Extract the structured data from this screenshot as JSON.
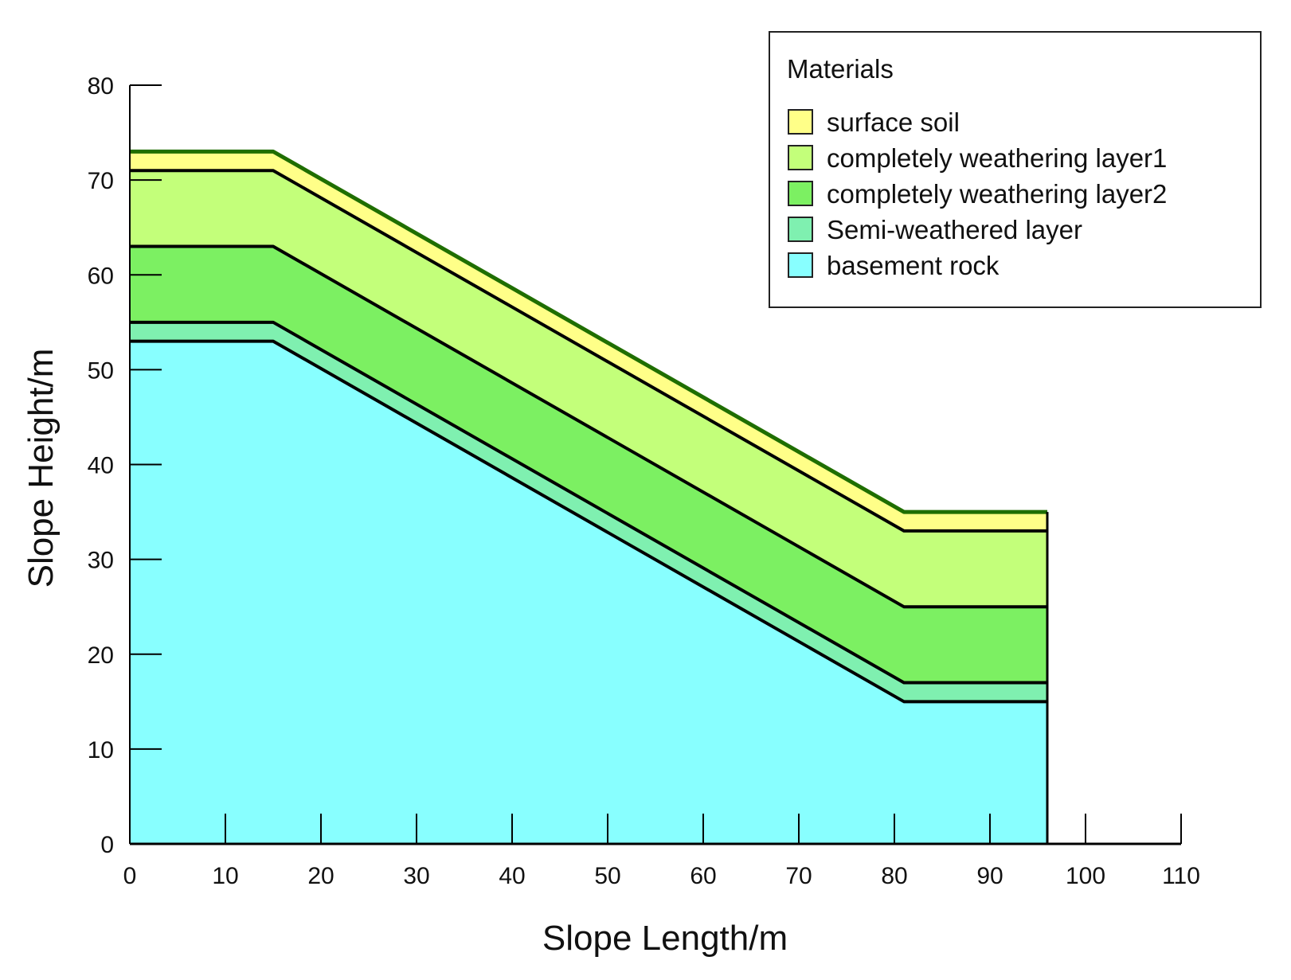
{
  "chart_data": {
    "type": "area",
    "title": "",
    "xlabel": "Slope Length/m",
    "ylabel": "Slope Height/m",
    "xlim": [
      0,
      110
    ],
    "ylim": [
      0,
      80
    ],
    "x_ticks": [
      0,
      10,
      20,
      30,
      40,
      50,
      60,
      70,
      80,
      90,
      100,
      110
    ],
    "y_ticks": [
      0,
      10,
      20,
      30,
      40,
      50,
      60,
      70,
      80
    ],
    "grid": false,
    "legend": {
      "title": "Materials",
      "position": "top-right"
    },
    "profile_x": [
      0,
      15,
      81,
      96
    ],
    "boundaries": [
      {
        "name": "ground surface",
        "y": [
          73,
          73,
          35,
          35
        ],
        "color": "#1f6e00"
      },
      {
        "name": "surface soil base",
        "y": [
          71,
          71,
          33,
          33
        ],
        "color": "#000000"
      },
      {
        "name": "completely weathering layer1 base",
        "y": [
          63,
          63,
          25,
          25
        ],
        "color": "#000000"
      },
      {
        "name": "completely weathering layer2 base",
        "y": [
          55,
          55,
          17,
          17
        ],
        "color": "#000000"
      },
      {
        "name": "Semi-weathered layer base",
        "y": [
          53,
          53,
          15,
          15
        ],
        "color": "#000000"
      }
    ],
    "series": [
      {
        "name": "surface soil",
        "top": 0,
        "bottom": 1,
        "color": "#ffff88"
      },
      {
        "name": "completely weathering layer1",
        "top": 1,
        "bottom": 2,
        "color": "#c3ff7a"
      },
      {
        "name": "completely weathering layer2",
        "top": 2,
        "bottom": 3,
        "color": "#7cf062"
      },
      {
        "name": "Semi-weathered layer",
        "top": 3,
        "bottom": 4,
        "color": "#7ff0b0"
      },
      {
        "name": "basement rock",
        "top": 4,
        "bottom": null,
        "color": "#88ffff"
      }
    ]
  }
}
